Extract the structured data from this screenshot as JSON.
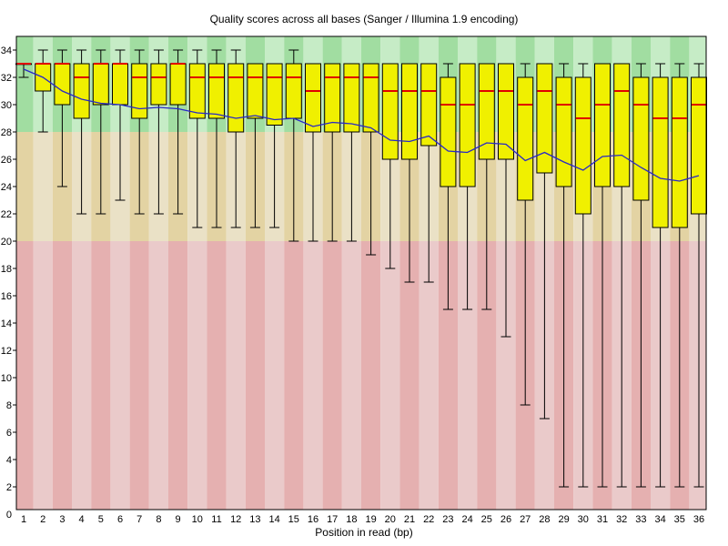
{
  "chart_data": {
    "type": "boxplot",
    "title": "Quality scores across all bases (Sanger / Illumina 1.9 encoding)",
    "xlabel": "Position in read (bp)",
    "ylim": [
      0,
      35
    ],
    "y_ticks": [
      0,
      2,
      4,
      6,
      8,
      10,
      12,
      14,
      16,
      18,
      20,
      22,
      24,
      26,
      28,
      30,
      32,
      34
    ],
    "categories": [
      1,
      2,
      3,
      4,
      5,
      6,
      7,
      8,
      9,
      10,
      11,
      12,
      13,
      14,
      15,
      16,
      17,
      18,
      19,
      20,
      21,
      22,
      23,
      24,
      25,
      26,
      27,
      28,
      29,
      30,
      31,
      32,
      33,
      34,
      35,
      36
    ],
    "zones": [
      {
        "label": "good-quality-zone",
        "from": 28,
        "to": 35,
        "dark": "#a1dda1",
        "light": "#c6ecc6"
      },
      {
        "label": "ok-quality-zone",
        "from": 20,
        "to": 28,
        "dark": "#e3d3a3",
        "light": "#eae1c6"
      },
      {
        "label": "poor-quality-zone",
        "from": 0,
        "to": 20,
        "dark": "#e5b0b0",
        "light": "#eacaca"
      }
    ],
    "series": {
      "lower_whisker": [
        32,
        28,
        24,
        22,
        22,
        23,
        22,
        22,
        22,
        21,
        21,
        21,
        21,
        21,
        20,
        20,
        20,
        20,
        19,
        18,
        17,
        17,
        15,
        15,
        15,
        13,
        8,
        7,
        2,
        2,
        2,
        2,
        2,
        2,
        2,
        2
      ],
      "q1": [
        33,
        31,
        30,
        29,
        30,
        30,
        29,
        30,
        30,
        29,
        29,
        28,
        29,
        28.5,
        29,
        28,
        28,
        28,
        28,
        26,
        26,
        27,
        24,
        24,
        26,
        26,
        23,
        25,
        24,
        22,
        24,
        24,
        23,
        21,
        21,
        22
      ],
      "median": [
        33,
        33,
        33,
        32,
        33,
        33,
        32,
        32,
        33,
        32,
        32,
        32,
        32,
        32,
        32,
        31,
        32,
        32,
        32,
        31,
        31,
        31,
        30,
        30,
        31,
        31,
        30,
        31,
        30,
        29,
        30,
        31,
        30,
        29,
        29,
        30
      ],
      "q3": [
        33,
        33,
        33,
        33,
        33,
        33,
        33,
        33,
        33,
        33,
        33,
        33,
        33,
        33,
        33,
        33,
        33,
        33,
        33,
        33,
        33,
        33,
        32,
        33,
        33,
        33,
        32,
        33,
        32,
        32,
        33,
        33,
        32,
        32,
        32,
        32
      ],
      "upper_whisker": [
        33,
        34,
        34,
        34,
        34,
        34,
        34,
        34,
        34,
        34,
        34,
        34,
        33,
        33,
        34,
        33,
        33,
        33,
        33,
        33,
        33,
        33,
        33,
        33,
        33,
        33,
        33,
        33,
        33,
        33,
        33,
        33,
        33,
        33,
        33,
        33
      ],
      "mean": [
        32.6,
        32.0,
        31.0,
        30.4,
        30.1,
        30.0,
        29.7,
        29.8,
        29.7,
        29.4,
        29.3,
        29.0,
        29.2,
        28.9,
        29.0,
        28.4,
        28.7,
        28.6,
        28.3,
        27.4,
        27.3,
        27.7,
        26.6,
        26.5,
        27.2,
        27.1,
        25.9,
        26.5,
        25.8,
        25.2,
        26.2,
        26.3,
        25.4,
        24.6,
        24.4,
        24.8
      ]
    },
    "colors": {
      "box_fill": "#f0f000",
      "box_border": "#000000",
      "median": "#e00000",
      "mean_line": "#2828c8",
      "whisker": "#000000",
      "axis": "#000000"
    },
    "legend_position": "none",
    "grid": false
  }
}
